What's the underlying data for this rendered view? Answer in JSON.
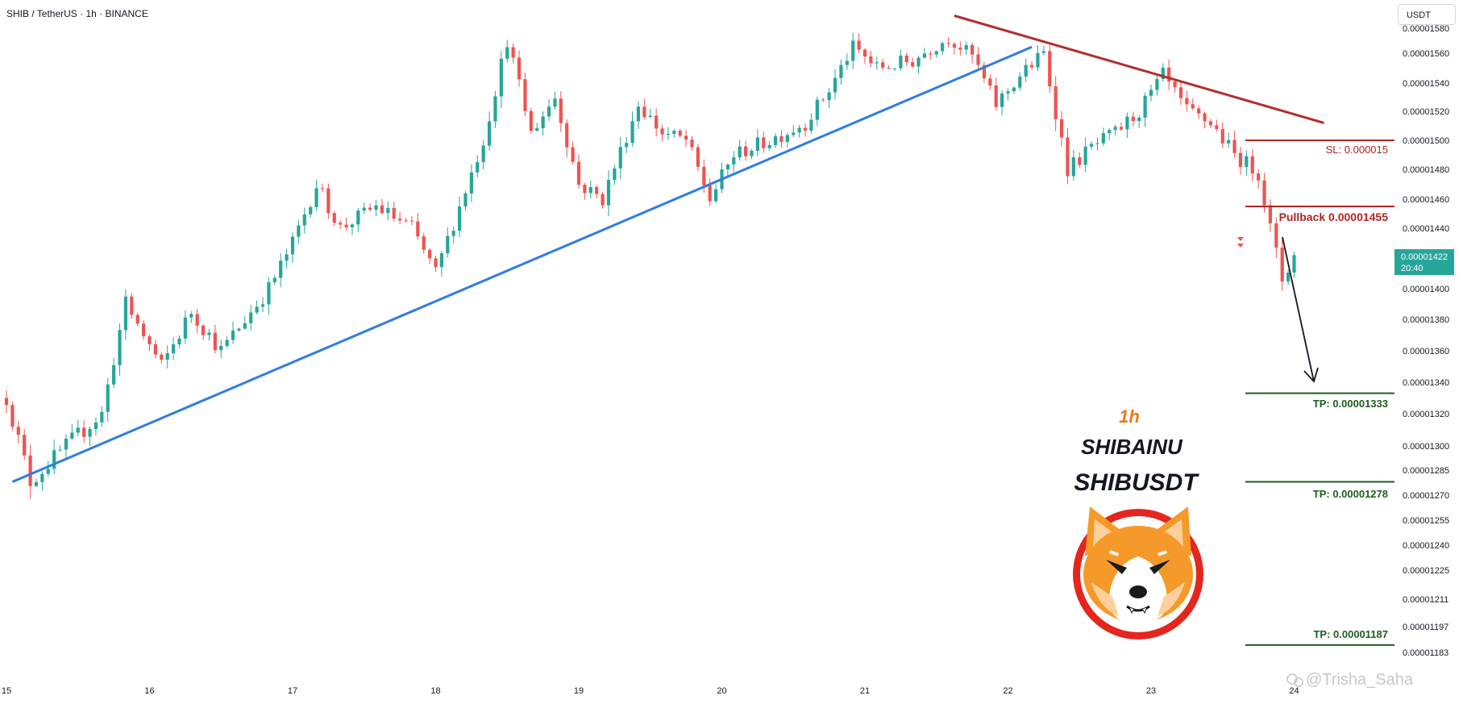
{
  "header": {
    "title": "SHIB / TetherUS · 1h · BINANCE",
    "currency_button": "USDT"
  },
  "price_label": {
    "price": "0.00001422",
    "countdown": "20:40"
  },
  "annotations": {
    "sl": "SL: 0.000015",
    "pullback": "Pullback 0.00001455",
    "tp1": "TP: 0.00001333",
    "tp2": "TP: 0.00001278",
    "tp3": "TP: 0.00001187",
    "timeframe": "1h",
    "name": "SHIBAINU",
    "symbol": "SHIBUSDT",
    "watermark": "@Trisha_Saha"
  },
  "colors": {
    "up": "#26a69a",
    "down": "#ef5350",
    "support_line": "#2f7de1",
    "resistance_line": "#b22e2e",
    "sl_line": "#b22424",
    "tp_line": "#1e5e1e",
    "timeframe_text": "#e87b1c",
    "price_label_bg": "#26a69a"
  },
  "logo": {
    "name": "shiba-inu-logo"
  },
  "chart_data": {
    "type": "candlestick",
    "symbol": "SHIB / TetherUS",
    "interval": "1h",
    "exchange": "BINANCE",
    "x_tick_labels": [
      "15",
      "16",
      "17",
      "18",
      "19",
      "20",
      "21",
      "22",
      "23",
      "24"
    ],
    "y_tick_labels": [
      "0.00001580",
      "0.00001560",
      "0.00001540",
      "0.00001520",
      "0.00001500",
      "0.00001480",
      "0.00001460",
      "0.00001440",
      "0.00001400",
      "0.00001380",
      "0.00001360",
      "0.00001340",
      "0.00001320",
      "0.00001300",
      "0.00001285",
      "0.00001270",
      "0.00001255",
      "0.00001240",
      "0.00001225",
      "0.00001211",
      "0.00001197",
      "0.00001183"
    ],
    "close_waypoints": [
      {
        "x": "15 00:00",
        "y": 1.33e-05
      },
      {
        "x": "15 04:00",
        "y": 1.278e-05
      },
      {
        "x": "15 10:00",
        "y": 1.3e-05
      },
      {
        "x": "15 16:00",
        "y": 1.32e-05
      },
      {
        "x": "15 20:00",
        "y": 1.39e-05
      },
      {
        "x": "16 02:00",
        "y": 1.35e-05
      },
      {
        "x": "16 07:00",
        "y": 1.385e-05
      },
      {
        "x": "16 12:00",
        "y": 1.36e-05
      },
      {
        "x": "16 20:00",
        "y": 1.4e-05
      },
      {
        "x": "17 00:00",
        "y": 1.43e-05
      },
      {
        "x": "17 04:00",
        "y": 1.47e-05
      },
      {
        "x": "17 08:00",
        "y": 1.44e-05
      },
      {
        "x": "17 14:00",
        "y": 1.455e-05
      },
      {
        "x": "17 20:00",
        "y": 1.44e-05
      },
      {
        "x": "18 00:00",
        "y": 1.41e-05
      },
      {
        "x": "18 04:00",
        "y": 1.455e-05
      },
      {
        "x": "18 08:00",
        "y": 1.5e-05
      },
      {
        "x": "18 12:00",
        "y": 1.57e-05
      },
      {
        "x": "18 16:00",
        "y": 1.505e-05
      },
      {
        "x": "18 20:00",
        "y": 1.53e-05
      },
      {
        "x": "19 00:00",
        "y": 1.47e-05
      },
      {
        "x": "19 04:00",
        "y": 1.46e-05
      },
      {
        "x": "19 10:00",
        "y": 1.525e-05
      },
      {
        "x": "19 14:00",
        "y": 1.505e-05
      },
      {
        "x": "19 18:00",
        "y": 1.5e-05
      },
      {
        "x": "19 22:00",
        "y": 1.46e-05
      },
      {
        "x": "20 02:00",
        "y": 1.49e-05
      },
      {
        "x": "20 08:00",
        "y": 1.5e-05
      },
      {
        "x": "20 14:00",
        "y": 1.512e-05
      },
      {
        "x": "20 18:00",
        "y": 1.535e-05
      },
      {
        "x": "20 22:00",
        "y": 1.565e-05
      },
      {
        "x": "21 02:00",
        "y": 1.55e-05
      },
      {
        "x": "21 08:00",
        "y": 1.555e-05
      },
      {
        "x": "21 14:00",
        "y": 1.572e-05
      },
      {
        "x": "21 18:00",
        "y": 1.558e-05
      },
      {
        "x": "21 22:00",
        "y": 1.525e-05
      },
      {
        "x": "22 02:00",
        "y": 1.545e-05
      },
      {
        "x": "22 06:00",
        "y": 1.56e-05
      },
      {
        "x": "22 10:00",
        "y": 1.48e-05
      },
      {
        "x": "22 14:00",
        "y": 1.495e-05
      },
      {
        "x": "22 18:00",
        "y": 1.505e-05
      },
      {
        "x": "22 22:00",
        "y": 1.52e-05
      },
      {
        "x": "23 02:00",
        "y": 1.545e-05
      },
      {
        "x": "23 06:00",
        "y": 1.52e-05
      },
      {
        "x": "23 10:00",
        "y": 1.512e-05
      },
      {
        "x": "23 14:00",
        "y": 1.49e-05
      },
      {
        "x": "23 18:00",
        "y": 1.478e-05
      },
      {
        "x": "23 20:00",
        "y": 1.44e-05
      },
      {
        "x": "23 22:00",
        "y": 1.406e-05
      },
      {
        "x": "24 00:00",
        "y": 1.422e-05
      }
    ],
    "support_trendline": {
      "from": {
        "x": "15 01:00",
        "y": 1.278e-05
      },
      "to": {
        "x": "22 04:00",
        "y": 1.565e-05
      }
    },
    "resistance_trendline": {
      "from": {
        "x": "21 15:00",
        "y": 1.59e-05
      },
      "to": {
        "x": "24 05:00",
        "y": 1.512e-05
      }
    },
    "levels": {
      "sl": 1.5e-05,
      "pullback": 1.455e-05,
      "tp1": 1.333e-05,
      "tp2": 1.278e-05,
      "tp3": 1.187e-05
    },
    "last_price": 1.422e-05,
    "grid": false,
    "legend": "none"
  }
}
